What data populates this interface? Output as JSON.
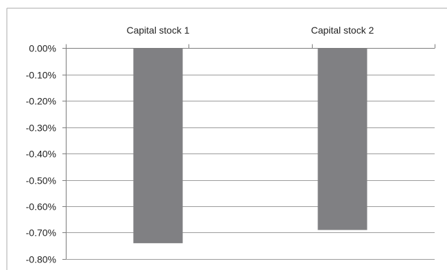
{
  "chart_data": {
    "type": "bar",
    "title": "",
    "xlabel": "",
    "ylabel": "",
    "categories": [
      "Capital stock 1",
      "Capital stock 2"
    ],
    "series": [
      {
        "values": [
          -0.74,
          -0.69
        ],
        "color": "#808083"
      }
    ],
    "ylim": [
      -0.8,
      0.0
    ],
    "y_ticks": [
      "0.00%",
      "-0.10%",
      "-0.20%",
      "-0.30%",
      "-0.40%",
      "-0.50%",
      "-0.60%",
      "-0.70%",
      "-0.80%"
    ],
    "y_tick_values": [
      0.0,
      -0.1,
      -0.2,
      -0.3,
      -0.4,
      -0.5,
      -0.6,
      -0.7,
      -0.8
    ],
    "value_unit": "%",
    "grid": true,
    "grid_color": "#9a9a9a",
    "axis_color": "#7a7a7a",
    "legend": "none",
    "category_label_position": "top"
  }
}
